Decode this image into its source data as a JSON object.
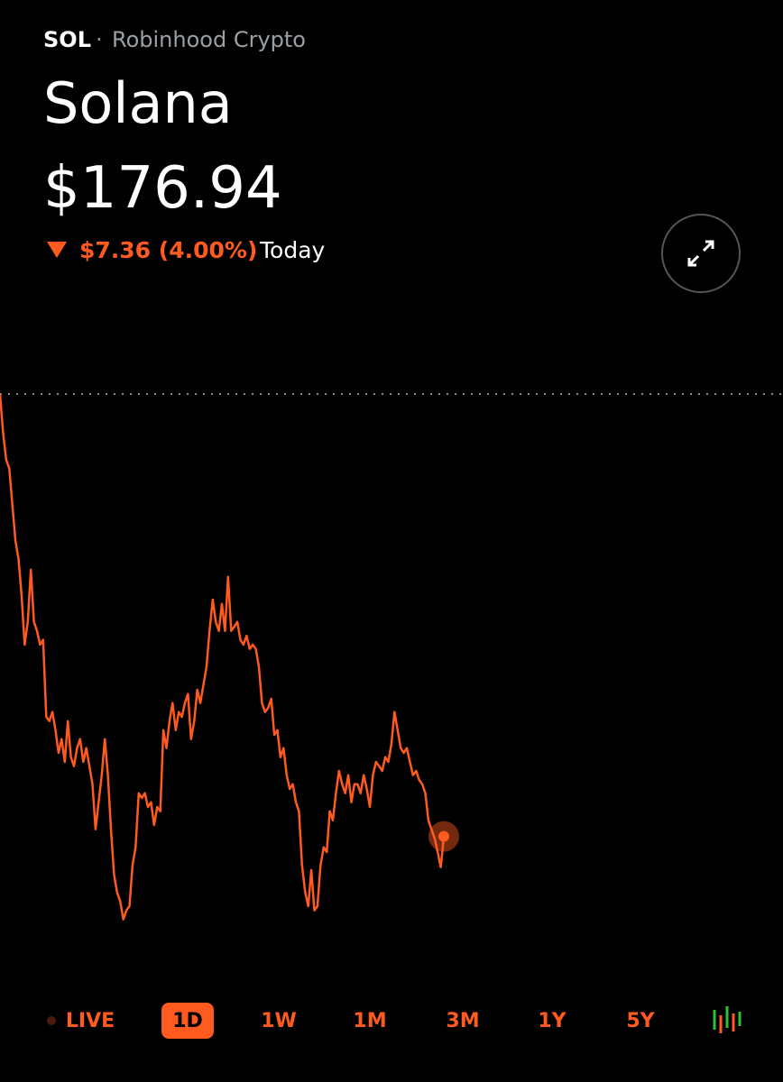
{
  "header": {
    "ticker": "SOL",
    "source": "Robinhood Crypto",
    "name": "Solana",
    "price": "$176.94",
    "change": "$7.36 (4.00%)",
    "period": "Today"
  },
  "chart_data": {
    "type": "line",
    "color": "#ff5a1f",
    "ylim": [
      175,
      184.3
    ],
    "values": [
      184.3,
      183.66,
      183.21,
      183.06,
      182.46,
      181.86,
      181.56,
      180.96,
      180.13,
      180.51,
      181.38,
      180.51,
      180.36,
      180.13,
      180.21,
      178.93,
      178.86,
      179.01,
      178.71,
      178.33,
      178.56,
      178.18,
      178.86,
      178.26,
      178.11,
      178.41,
      178.56,
      178.18,
      178.41,
      178.11,
      177.81,
      177.06,
      177.51,
      177.96,
      178.56,
      177.96,
      177.06,
      176.31,
      176.01,
      175.86,
      175.56,
      175.71,
      175.78,
      176.46,
      176.76,
      177.66,
      177.58,
      177.66,
      177.43,
      177.51,
      177.13,
      177.43,
      177.36,
      178.71,
      178.41,
      178.86,
      179.16,
      178.71,
      179.01,
      178.93,
      179.16,
      179.31,
      178.56,
      178.86,
      179.38,
      179.16,
      179.46,
      179.76,
      180.36,
      180.88,
      180.51,
      180.36,
      180.81,
      180.36,
      181.26,
      180.36,
      180.43,
      180.51,
      180.21,
      180.13,
      180.28,
      180.06,
      180.13,
      180.06,
      179.76,
      179.16,
      179.01,
      179.08,
      179.23,
      178.63,
      178.71,
      178.26,
      178.41,
      177.96,
      177.73,
      177.81,
      177.51,
      177.36,
      176.46,
      176.01,
      175.78,
      176.38,
      175.71,
      175.78,
      176.46,
      176.76,
      176.68,
      177.36,
      177.21,
      177.66,
      178.03,
      177.81,
      177.66,
      177.96,
      177.51,
      177.81,
      177.81,
      177.66,
      177.96,
      177.73,
      177.43,
      177.96,
      178.18,
      178.11,
      178.03,
      178.26,
      178.18,
      178.48,
      179.01,
      178.71,
      178.41,
      178.33,
      178.41,
      178.18,
      177.96,
      178.03,
      177.88,
      177.81,
      177.66,
      177.21,
      177.06,
      176.91,
      176.68,
      176.43,
      176.94
    ]
  },
  "tabs": [
    "LIVE",
    "1D",
    "1W",
    "1M",
    "3M",
    "1Y",
    "5Y"
  ],
  "selected_tab": "1D"
}
